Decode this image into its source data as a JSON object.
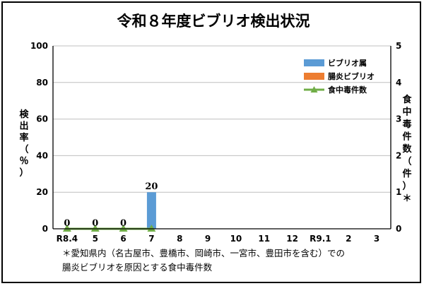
{
  "chart_data": {
    "type": "bar",
    "title": "令和８年度ビブリオ検出状況",
    "categories": [
      "R8.4",
      "5",
      "6",
      "7",
      "8",
      "9",
      "10",
      "11",
      "12",
      "R9.1",
      "2",
      "3"
    ],
    "series": [
      {
        "name": "ビブリオ属",
        "type": "bar",
        "axis": "left",
        "color": "#5b9bd5",
        "values": [
          0,
          0,
          0,
          20,
          null,
          null,
          null,
          null,
          null,
          null,
          null,
          null
        ]
      },
      {
        "name": "腸炎ビブリオ",
        "type": "bar",
        "axis": "left",
        "color": "#ed7d31",
        "values": [
          0,
          0,
          0,
          0,
          null,
          null,
          null,
          null,
          null,
          null,
          null,
          null
        ]
      },
      {
        "name": "食中毒件数",
        "type": "line",
        "axis": "right",
        "color": "#70ad47",
        "values": [
          0,
          0,
          0,
          0,
          null,
          null,
          null,
          null,
          null,
          null,
          null,
          null
        ]
      }
    ],
    "data_labels": [
      "0",
      "0",
      "0",
      "20"
    ],
    "ylabel": "検出率（％）",
    "y2label": "食中毒件数（件）＊",
    "ylim": [
      0,
      100
    ],
    "y2lim": [
      0,
      5
    ],
    "yticks": [
      "0",
      "20",
      "40",
      "60",
      "80",
      "100"
    ],
    "y2ticks": [
      "0",
      "1",
      "2",
      "3",
      "4",
      "5"
    ],
    "grid": true,
    "legend_position": "top-right"
  },
  "footnote": {
    "line1": "＊愛知県内（名古屋市、豊橋市、岡崎市、一宮市、豊田市を含む）での",
    "line2": "腸炎ビブリオを原因とする食中毒件数"
  }
}
